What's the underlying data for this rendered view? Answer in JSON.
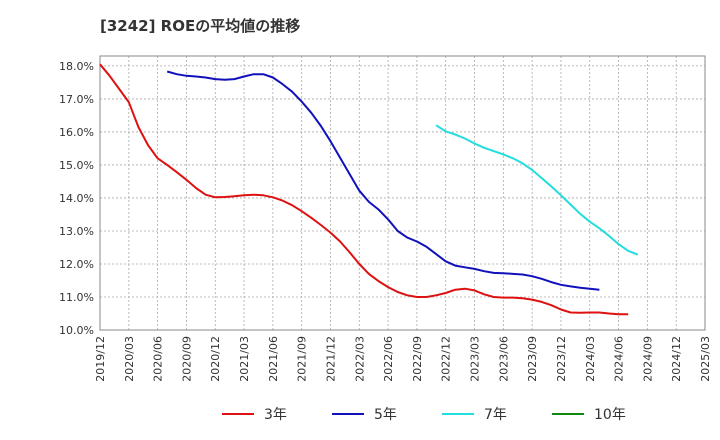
{
  "chart_data": {
    "type": "line",
    "title": "[3242]  ROEの平均値の推移",
    "xlabel": "",
    "ylabel": "",
    "ylim": [
      10.0,
      18.3
    ],
    "grid": true,
    "x_ticks": [
      "2019/12",
      "2020/03",
      "2020/06",
      "2020/09",
      "2020/12",
      "2021/03",
      "2021/06",
      "2021/09",
      "2021/12",
      "2022/03",
      "2022/06",
      "2022/09",
      "2022/12",
      "2023/03",
      "2023/06",
      "2023/09",
      "2023/12",
      "2024/03",
      "2024/06",
      "2024/09",
      "2024/12",
      "2025/03"
    ],
    "y_ticks": [
      "10.0%",
      "11.0%",
      "12.0%",
      "13.0%",
      "14.0%",
      "15.0%",
      "16.0%",
      "17.0%",
      "18.0%"
    ],
    "y_tick_values": [
      10,
      11,
      12,
      13,
      14,
      15,
      16,
      17,
      18
    ],
    "series": [
      {
        "name": "3年",
        "color": "#dd1111",
        "start_index": 0,
        "values": [
          18.05,
          17.7,
          17.3,
          16.9,
          16.15,
          15.6,
          15.2,
          15.0,
          14.78,
          14.55,
          14.3,
          14.1,
          14.02,
          14.03,
          14.05,
          14.08,
          14.1,
          14.08,
          14.02,
          13.92,
          13.78,
          13.6,
          13.4,
          13.18,
          12.95,
          12.68,
          12.35,
          12.0,
          11.7,
          11.48,
          11.3,
          11.15,
          11.05,
          11.0,
          11.0,
          11.05,
          11.12,
          11.22,
          11.25,
          11.2,
          11.08,
          11.0,
          10.98,
          10.98,
          10.96,
          10.92,
          10.85,
          10.75,
          10.62,
          10.53,
          10.52,
          10.53,
          10.53,
          10.5,
          10.48,
          10.48
        ]
      },
      {
        "name": "5年",
        "color": "#1111bb",
        "start_index": 7,
        "values": [
          17.83,
          17.75,
          17.7,
          17.68,
          17.65,
          17.6,
          17.58,
          17.6,
          17.68,
          17.75,
          17.75,
          17.65,
          17.45,
          17.22,
          16.92,
          16.58,
          16.18,
          15.72,
          15.22,
          14.72,
          14.22,
          13.88,
          13.65,
          13.35,
          13.0,
          12.8,
          12.68,
          12.52,
          12.3,
          12.08,
          11.95,
          11.9,
          11.85,
          11.78,
          11.73,
          11.72,
          11.7,
          11.68,
          11.63,
          11.55,
          11.45,
          11.37,
          11.32,
          11.28,
          11.25,
          11.22
        ]
      },
      {
        "name": "7年",
        "color": "#22dddd",
        "start_index": 35,
        "values": [
          16.2,
          16.02,
          15.92,
          15.8,
          15.65,
          15.52,
          15.42,
          15.32,
          15.2,
          15.05,
          14.85,
          14.6,
          14.35,
          14.08,
          13.8,
          13.52,
          13.28,
          13.08,
          12.85,
          12.6,
          12.4,
          12.28
        ]
      },
      {
        "name": "10年",
        "color": "#118811",
        "start_index": 0,
        "values": []
      }
    ]
  }
}
